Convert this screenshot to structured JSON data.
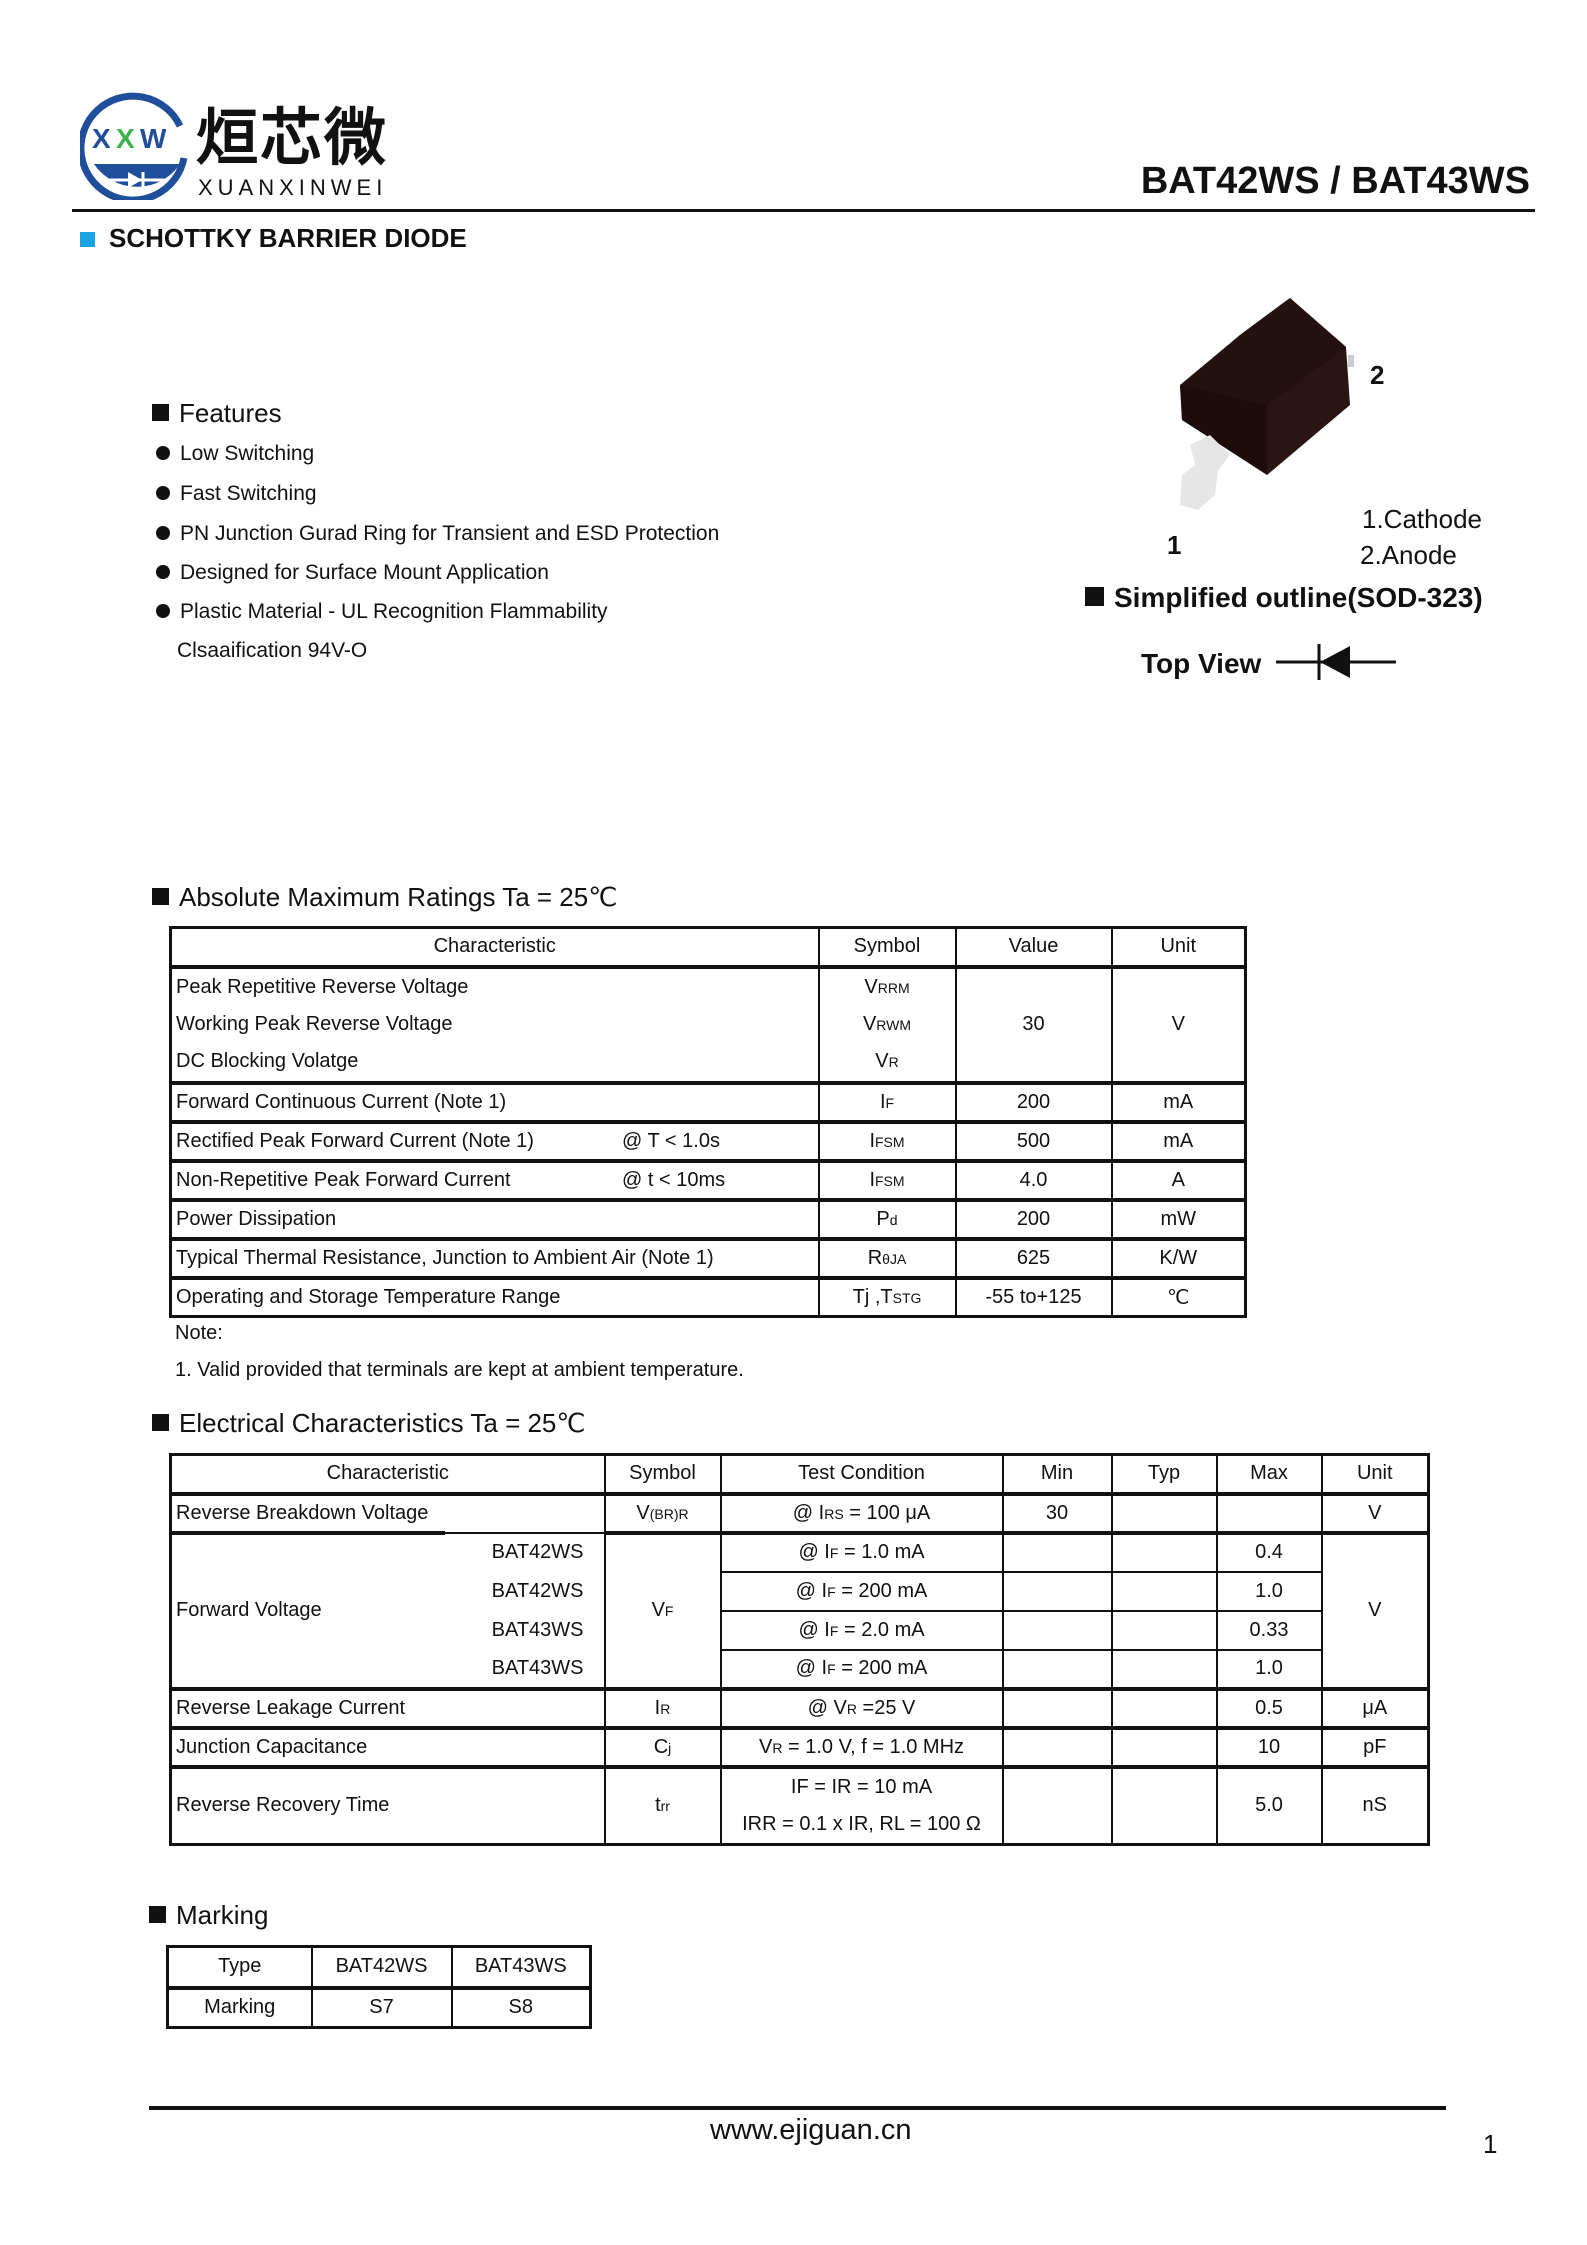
{
  "header": {
    "brand_cn": "烜芯微",
    "brand_en": "XUANXINWEI",
    "logo_letters": "XXW",
    "part_numbers": "BAT42WS / BAT43WS",
    "subtitle": "SCHOTTKY BARRIER DIODE",
    "accent_color": "#1aa3e0",
    "logo_color": "#1f4e9a"
  },
  "features": {
    "title": "Features",
    "items": [
      "Low Switching",
      "Fast Switching",
      "PN Junction Gurad Ring for Transient and ESD Protection",
      "Designed for Surface Mount Application",
      "Plastic Material - UL Recognition Flammability"
    ],
    "continuation": "Clsaaification 94V-O"
  },
  "package": {
    "pin2": "2",
    "pin1": "1",
    "pin_desc_1": "1.Cathode",
    "pin_desc_2": "2.Anode",
    "outline_title": "Simplified outline(SOD-323)",
    "top_view": "Top View"
  },
  "abs_max": {
    "title": "Absolute Maximum Ratings Ta = 25℃",
    "headers": [
      "Characteristic",
      "Symbol",
      "Value",
      "Unit"
    ],
    "group": {
      "rows": [
        {
          "char": "Peak Repetitive  Reverse Voltage",
          "sym": "V",
          "sub": "RRM"
        },
        {
          "char": "Working Peak Reverse Voltage",
          "sym": "V",
          "sub": "RWM"
        },
        {
          "char": "DC Blocking Volatge",
          "sym": "V",
          "sub": "R"
        }
      ],
      "value": "30",
      "unit": "V"
    },
    "rows": [
      {
        "char": "Forward Continuous Current (Note 1)",
        "cond": "",
        "sym": "I",
        "sub": "F",
        "value": "200",
        "unit": "mA"
      },
      {
        "char": "Rectified Peak Forward Current (Note 1)",
        "cond": "@  T < 1.0s",
        "sym": "I",
        "sub": "FSM",
        "value": "500",
        "unit": "mA"
      },
      {
        "char": "Non-Repetitive Peak Forward Current",
        "cond": "@  t < 10ms",
        "sym": "I",
        "sub": "FSM",
        "value": "4.0",
        "unit": "A"
      },
      {
        "char": "Power Dissipation",
        "cond": "",
        "sym": "P",
        "sub": "d",
        "value": "200",
        "unit": "mW"
      },
      {
        "char": "Typical Thermal Resistance, Junction to Ambient Air (Note 1)",
        "cond": "",
        "sym": "R",
        "sub": "θJA",
        "value": "625",
        "unit": "K/W"
      },
      {
        "char": "Operating and Storage Temperature Range",
        "cond": "",
        "sym": "Tj ,T",
        "sub": "STG",
        "value": "-55 to+125",
        "unit": "℃"
      }
    ],
    "note_label": "Note:",
    "note_1": "1. Valid provided that terminals are kept at ambient temperature."
  },
  "elec": {
    "title": "Electrical Characteristics Ta = 25℃",
    "headers": [
      "Characteristic",
      "Symbol",
      "Test Condition",
      "Min",
      "Typ",
      "Max",
      "Unit"
    ],
    "rbv": {
      "char": "Reverse Breakdown Voltage",
      "sym": "V",
      "sub": "(BR)R",
      "cond_a": "@ I",
      "cond_sub": "RS",
      "cond_b": " = 100 μA",
      "min": "30",
      "typ": "",
      "max": "",
      "unit": "V"
    },
    "vf": {
      "char": "Forward Voltage",
      "sym": "V",
      "sub": "F",
      "unit": "V",
      "rows": [
        {
          "part": "BAT42WS",
          "cond_sub": "F",
          "cond_b": " = 1.0 mA",
          "max": "0.4"
        },
        {
          "part": "BAT42WS",
          "cond_sub": "F",
          "cond_b": " = 200 mA",
          "max": "1.0"
        },
        {
          "part": "BAT43WS",
          "cond_sub": "F",
          "cond_b": " = 2.0 mA",
          "max": "0.33"
        },
        {
          "part": "BAT43WS",
          "cond_sub": "F",
          "cond_b": " = 200 mA",
          "max": "1.0"
        }
      ],
      "cond_a": "@ I"
    },
    "ir": {
      "char": "Reverse Leakage Current",
      "sym": "I",
      "sub": "R",
      "cond_a": "@ V",
      "cond_sub": "R",
      "cond_b": " =25 V",
      "max": "0.5",
      "unit": "μA"
    },
    "cj": {
      "char": "Junction Capacitance",
      "sym": "C",
      "sub": "j",
      "cond_a": "V",
      "cond_sub": "R",
      "cond_b": " = 1.0 V, f = 1.0 MHz",
      "max": "10",
      "unit": "pF"
    },
    "trr": {
      "char": "Reverse Recovery Time",
      "sym": "t",
      "sub": "rr",
      "cond1": "IF = IR = 10 mA",
      "cond2": "IRR = 0.1 x IR,  RL = 100  Ω",
      "max": "5.0",
      "unit": "nS"
    }
  },
  "marking": {
    "title": "Marking",
    "rows": [
      [
        "Type",
        "BAT42WS",
        "BAT43WS"
      ],
      [
        "Marking",
        "S7",
        "S8"
      ]
    ]
  },
  "footer": {
    "url": "www.ejiguan.cn",
    "page": "1"
  }
}
